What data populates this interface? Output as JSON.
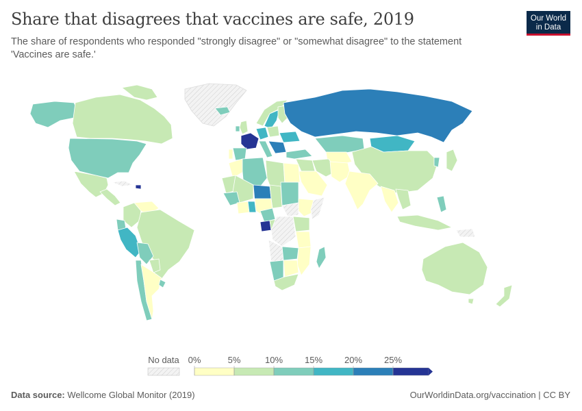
{
  "title": "Share that disagrees that vaccines are safe, 2019",
  "subtitle": "The share of respondents who responded \"strongly disagree\" or \"somewhat disagree\" to the statement 'Vaccines are safe.'",
  "logo": {
    "line1": "Our World",
    "line2": "in Data"
  },
  "legend": {
    "no_data_label": "No data",
    "bins": [
      {
        "from": "0%",
        "to": "5%",
        "color": "#ffffc5"
      },
      {
        "from": "5%",
        "to": "10%",
        "color": "#c7e9b4"
      },
      {
        "from": "10%",
        "to": "15%",
        "color": "#7fcdbb"
      },
      {
        "from": "15%",
        "to": "20%",
        "color": "#41b6c4"
      },
      {
        "from": "20%",
        "to": "25%",
        "color": "#2c7fb8"
      },
      {
        "from": "25%",
        "to": "",
        "color": "#253494"
      }
    ],
    "tick_labels": [
      "0%",
      "5%",
      "10%",
      "15%",
      "20%",
      "25%"
    ]
  },
  "colors": {
    "no_data": "#eeeeee",
    "border": "#ffffff",
    "accent": "#c8102e",
    "brand": "#0b2a4a"
  },
  "footer": {
    "source_label": "Data source:",
    "source": "Wellcome Global Monitor (2019)",
    "link": "OurWorldinData.org/vaccination",
    "license": "CC BY"
  }
}
